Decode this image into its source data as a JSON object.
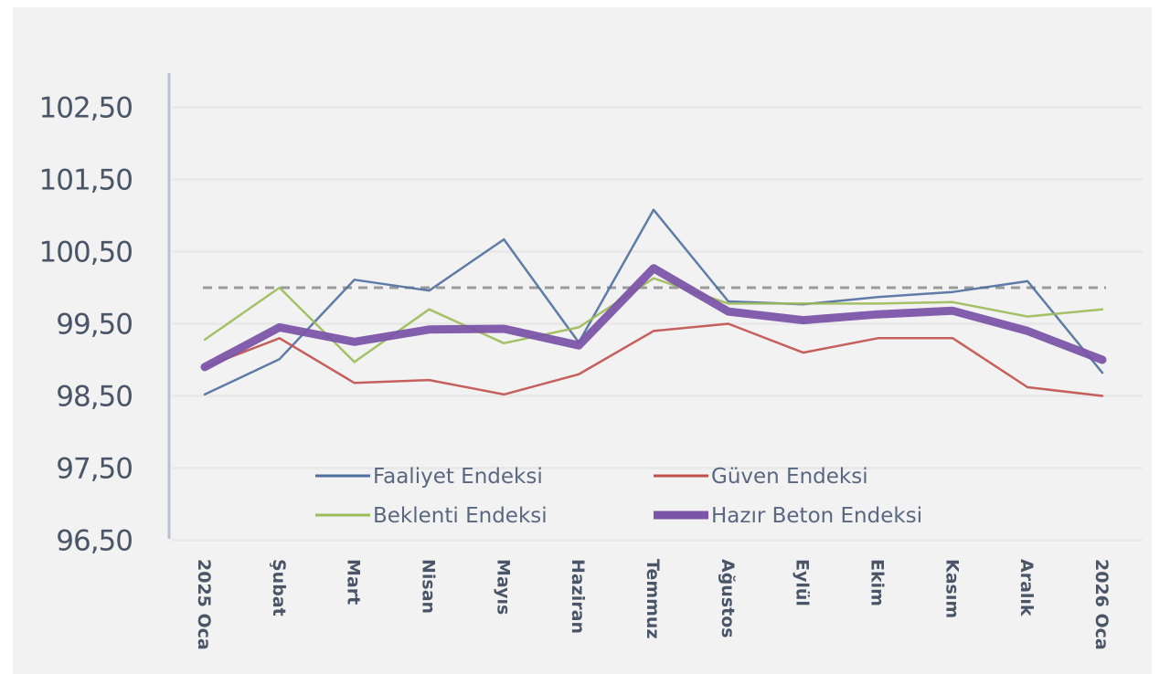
{
  "chart_data": {
    "type": "line",
    "title": "",
    "xlabel": "",
    "ylabel": "",
    "categories": [
      "2025 Ocak",
      "Şubat",
      "Mart",
      "Nisan",
      "Mayıs",
      "Haziran",
      "Temmuz",
      "Ağustos",
      "Eylül",
      "Ekim",
      "Kasım",
      "Aralık",
      "2026 Ocak"
    ],
    "category_labels_visible": [
      "2025 Oca",
      "Şubat",
      "Mart",
      "Nisan",
      "Mayıs",
      "Haziran",
      "Temmuz",
      "Ağustos",
      "Eylül",
      "Ekim",
      "Kasım",
      "Aralık",
      "2026 Oca"
    ],
    "ylim": [
      96.5,
      102.5
    ],
    "yticks": [
      102.5,
      101.5,
      100.5,
      99.5,
      98.5,
      97.5,
      96.5
    ],
    "ytick_labels": [
      "102,50",
      "101,50",
      "100,50",
      "99,50",
      "98,50",
      "97,50",
      "96,50"
    ],
    "grid": true,
    "reference_line": {
      "value": 100.0,
      "style": "dashed",
      "color": "#9a9a9a"
    },
    "legend_position": "inside-bottom",
    "series": [
      {
        "name": "Faaliyet Endeksi",
        "color": "#4f6f9f",
        "width": 2.5,
        "values": [
          98.52,
          99.01,
          100.11,
          99.96,
          100.67,
          99.24,
          101.08,
          99.81,
          99.77,
          99.87,
          99.94,
          100.09,
          98.82
        ]
      },
      {
        "name": "Güven Endeksi",
        "color": "#c0504d",
        "width": 2.5,
        "values": [
          98.9,
          99.3,
          98.68,
          98.72,
          98.52,
          98.8,
          99.4,
          99.5,
          99.1,
          99.3,
          99.3,
          98.62,
          98.5
        ]
      },
      {
        "name": "Beklenti Endeksi",
        "color": "#9bbb59",
        "width": 2.5,
        "values": [
          99.28,
          100.0,
          98.97,
          99.7,
          99.23,
          99.45,
          100.13,
          99.78,
          99.78,
          99.78,
          99.8,
          99.6,
          99.7
        ]
      },
      {
        "name": "Hazır Beton Endeksi",
        "color": "#7b55a8",
        "width": 9,
        "values": [
          98.9,
          99.45,
          99.25,
          99.42,
          99.43,
          99.2,
          100.27,
          99.67,
          99.55,
          99.63,
          99.68,
          99.4,
          99.0
        ]
      }
    ]
  },
  "chart": {
    "title": "",
    "legend": [
      {
        "label": "Faaliyet Endeksi",
        "color": "#4f6f9f"
      },
      {
        "label": "Güven Endeksi",
        "color": "#c0504d"
      },
      {
        "label": "Beklenti Endeksi",
        "color": "#9bbb59"
      },
      {
        "label": "Hazır Beton Endeksi",
        "color": "#7b55a8"
      }
    ]
  }
}
